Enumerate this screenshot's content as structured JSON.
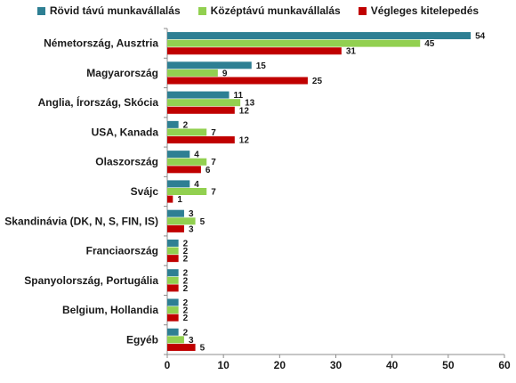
{
  "chart_data": {
    "type": "bar",
    "orientation": "horizontal",
    "categories": [
      "Németország, Ausztria",
      "Magyarország",
      "Anglia, Írország, Skócia",
      "USA, Kanada",
      "Olaszország",
      "Svájc",
      "Skandinávia (DK, N, S, FIN, IS)",
      "Franciaország",
      "Spanyolország, Portugália",
      "Belgium, Hollandia",
      "Egyéb"
    ],
    "series": [
      {
        "name": "Rövid távú munkavállalás",
        "color": "#2e7f93",
        "values": [
          54,
          15,
          11,
          2,
          4,
          4,
          3,
          2,
          2,
          2,
          2
        ]
      },
      {
        "name": "Középtávú munkavállalás",
        "color": "#92d050",
        "values": [
          45,
          9,
          13,
          7,
          7,
          7,
          5,
          2,
          2,
          2,
          3
        ]
      },
      {
        "name": "Végleges kitelepedés",
        "color": "#c00000",
        "values": [
          31,
          25,
          12,
          12,
          6,
          1,
          3,
          2,
          2,
          2,
          5
        ]
      }
    ],
    "xlim": [
      0,
      60
    ],
    "xticks": [
      0,
      10,
      20,
      30,
      40,
      50,
      60
    ],
    "title": "",
    "xlabel": "",
    "ylabel": "",
    "legend_position": "top",
    "grid": false
  }
}
